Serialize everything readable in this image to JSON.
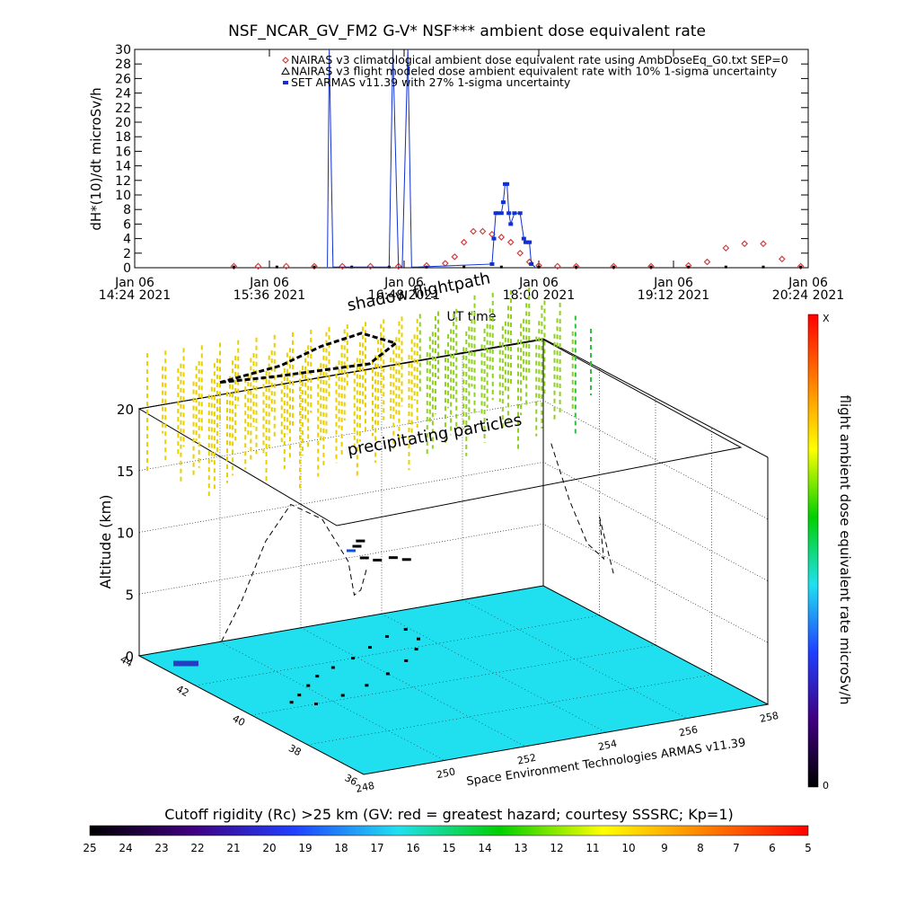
{
  "chart_data": [
    {
      "type": "scatter",
      "title": "NSF_NCAR_GV_FM2 G-V* NSF*** ambient dose equivalent rate",
      "xlabel": "UT time",
      "ylabel": "dH*(10)/dt microSv/h",
      "ylim": [
        0,
        30
      ],
      "yticks": [
        0,
        2,
        4,
        6,
        8,
        10,
        12,
        14,
        16,
        18,
        20,
        22,
        24,
        26,
        28,
        30
      ],
      "xlim": [
        "2021-01-06 14:24",
        "2021-01-06 20:24"
      ],
      "xticks": [
        {
          "line1": "Jan 06",
          "line2": "14:24 2021",
          "value": "2021-01-06 14:24"
        },
        {
          "line1": "Jan 06",
          "line2": "15:36 2021",
          "value": "2021-01-06 15:36"
        },
        {
          "line1": "Jan 06",
          "line2": "16:48 2021",
          "value": "2021-01-06 16:48"
        },
        {
          "line1": "Jan 06",
          "line2": "18:00 2021",
          "value": "2021-01-06 18:00"
        },
        {
          "line1": "Jan 06",
          "line2": "19:12 2021",
          "value": "2021-01-06 19:12"
        },
        {
          "line1": "Jan 06",
          "line2": "20:24 2021",
          "value": "2021-01-06 20:24"
        }
      ],
      "legend": [
        {
          "label": "NAIRAS v3 climatological ambient dose equivalent rate using AmbDoseEq_G0.txt SEP=0",
          "color": "#d04040",
          "symbol": "diamond"
        },
        {
          "label": "NAIRAS v3 flight modeled dose ambient equivalent rate with 10% 1-sigma uncertainty",
          "color": "#000000",
          "symbol": "triangle"
        },
        {
          "label": "SET ARMAS v11.39 with 27% 1-sigma uncertainty",
          "color": "#1030d0",
          "symbol": "square"
        }
      ],
      "legend_position": "top-right",
      "series": [
        {
          "name": "NAIRAS v3 climatological ambient dose equivalent rate using AmbDoseEq_G0.txt SEP=0",
          "color": "#d04040",
          "x": [
            "15:17",
            "15:30",
            "15:45",
            "16:00",
            "16:15",
            "16:30",
            "16:45",
            "17:00",
            "17:10",
            "17:15",
            "17:20",
            "17:25",
            "17:30",
            "17:35",
            "17:40",
            "17:45",
            "17:50",
            "17:55",
            "18:00",
            "18:10",
            "18:20",
            "18:40",
            "19:00",
            "19:20",
            "19:30",
            "19:40",
            "19:50",
            "20:00",
            "20:10",
            "20:20"
          ],
          "values": [
            0.2,
            0.2,
            0.2,
            0.2,
            0.2,
            0.2,
            0.2,
            0.3,
            0.6,
            1.5,
            3.5,
            5.0,
            5.0,
            4.6,
            4.2,
            3.5,
            2.0,
            0.8,
            0.3,
            0.2,
            0.2,
            0.2,
            0.2,
            0.3,
            0.8,
            2.7,
            3.3,
            3.3,
            1.2,
            0.2
          ]
        },
        {
          "name": "NAIRAS v3 flight modeled dose ambient equivalent rate with 10% 1-sigma uncertainty",
          "color": "#000000",
          "x": [
            "15:17",
            "15:40",
            "16:00",
            "16:20",
            "16:40",
            "17:00",
            "17:20",
            "17:40",
            "18:00",
            "18:20",
            "18:40",
            "19:00",
            "19:20",
            "19:40",
            "20:00",
            "20:20"
          ],
          "values": [
            0.1,
            0.1,
            0.1,
            0.1,
            0.1,
            0.1,
            0.1,
            0.1,
            0.1,
            0.1,
            0.1,
            0.1,
            0.1,
            0.1,
            0.1,
            0.1
          ]
        },
        {
          "name": "SET ARMAS v11.39 with 27% 1-sigma uncertainty",
          "color": "#1030d0",
          "x": [
            "16:07",
            "16:08",
            "16:10",
            "16:40",
            "16:42",
            "16:45",
            "16:47",
            "16:50",
            "16:52",
            "16:55",
            "17:35",
            "17:36",
            "17:37",
            "17:38",
            "17:40",
            "17:41",
            "17:42",
            "17:43",
            "17:44",
            "17:45",
            "17:47",
            "17:50",
            "17:52",
            "17:53",
            "17:54",
            "17:55",
            "17:56",
            "17:58"
          ],
          "values": [
            0.1,
            30,
            0.1,
            0.1,
            30,
            0.1,
            0.1,
            30,
            0.1,
            0.1,
            0.5,
            4,
            7.5,
            7.5,
            7.5,
            9,
            11.5,
            11.5,
            7.5,
            6,
            7.5,
            7.5,
            4,
            3.5,
            3.5,
            3.5,
            0.5,
            0.1
          ]
        }
      ]
    },
    {
      "type": "scatter3d",
      "xlabel": "",
      "ylabel": "",
      "zlabel": "Altitude (km)",
      "xticks": [
        248,
        250,
        252,
        254,
        256,
        258
      ],
      "yticks": [
        36,
        38,
        40,
        42,
        44
      ],
      "zticks": [
        0,
        5,
        10,
        15,
        20
      ],
      "xlim": [
        248,
        258
      ],
      "ylim": [
        36,
        44
      ],
      "zlim": [
        0,
        20
      ],
      "annotations": [
        {
          "text": "shadow flightpath",
          "role": "label"
        },
        {
          "text": "precipitating particles",
          "role": "label"
        }
      ],
      "credit": "Space Environment Technologies ARMAS v11.39",
      "floor_color": "#20e0f0",
      "flight_track_color": "#000000",
      "dose_points_color_scale": "microSv/h",
      "shadow_flightpath": [
        [
          250,
          44,
          21
        ],
        [
          251.5,
          44,
          21.5
        ],
        [
          252.5,
          44,
          22.5
        ],
        [
          253.5,
          44,
          23
        ],
        [
          254,
          43.5,
          22.5
        ],
        [
          253,
          43,
          22
        ],
        [
          251,
          43.5,
          21.5
        ],
        [
          250,
          44,
          21
        ]
      ],
      "flight_path_3d": [
        [
          248.3,
          41.5,
          4
        ],
        [
          248.8,
          41.5,
          7
        ],
        [
          249.6,
          41.8,
          11
        ],
        [
          250.5,
          42.2,
          13
        ],
        [
          251,
          41.8,
          12
        ],
        [
          251.3,
          41.3,
          9
        ],
        [
          251.1,
          40.8,
          7
        ],
        [
          251.4,
          41,
          7
        ],
        [
          251.7,
          41.2,
          8.5
        ]
      ],
      "flight_path_right": [
        [
          257.5,
          43,
          13
        ],
        [
          257.6,
          42.5,
          9
        ],
        [
          257.7,
          42,
          6
        ],
        [
          257.9,
          41.7,
          5
        ],
        [
          258,
          42,
          8
        ],
        [
          258,
          41.5,
          4
        ]
      ]
    },
    {
      "type": "colorbar",
      "title": "flight ambient dose equivalent rate microSv/h",
      "orientation": "vertical",
      "range_labels": [
        "X",
        "0"
      ],
      "colors": [
        "#ff0000",
        "#ff8000",
        "#ffff00",
        "#00d000",
        "#20e0f0",
        "#2040ff",
        "#400080",
        "#000000"
      ]
    },
    {
      "type": "colorbar",
      "title": "Cutoff rigidity (Rc) >25 km (GV: red = greatest hazard; courtesy SSSRC; Kp=1)",
      "orientation": "horizontal",
      "ticks": [
        25,
        24,
        23,
        22,
        21,
        20,
        19,
        18,
        17,
        16,
        15,
        14,
        13,
        12,
        11,
        10,
        9,
        8,
        7,
        6,
        5
      ],
      "colors": [
        "#000000",
        "#400080",
        "#2040ff",
        "#20e0f0",
        "#00d000",
        "#ffff00",
        "#ff8000",
        "#ff0000"
      ]
    }
  ]
}
